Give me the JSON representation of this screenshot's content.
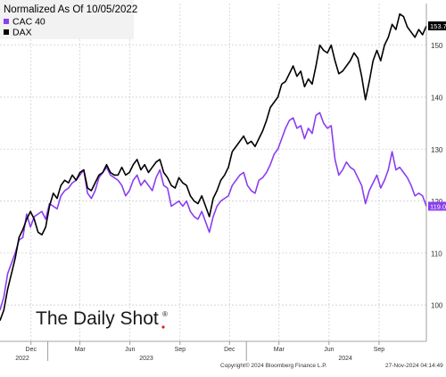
{
  "chart_data": {
    "type": "line",
    "title": "",
    "xlabel": "",
    "ylabel": "",
    "ylim": [
      93,
      158
    ],
    "yticks": [
      100,
      110,
      120,
      130,
      140,
      150
    ],
    "grid": true,
    "legend_placement": "top-left",
    "legend_header": "Normalized As Of 10/05/2022",
    "x_range": [
      "2022-10-05",
      "2024-11-27"
    ],
    "x_tick_labels": [
      {
        "date": "2022-12-01",
        "label": "Dec"
      },
      {
        "date": "2023-03-01",
        "label": "Mar"
      },
      {
        "date": "2023-06-01",
        "label": "Jun"
      },
      {
        "date": "2023-09-01",
        "label": "Sep"
      },
      {
        "date": "2023-12-01",
        "label": "Dec"
      },
      {
        "date": "2024-03-01",
        "label": "Mar"
      },
      {
        "date": "2024-06-01",
        "label": "Jun"
      },
      {
        "date": "2024-09-01",
        "label": "Sep"
      }
    ],
    "year_labels": [
      {
        "date": "2022-11-15",
        "label": "2022"
      },
      {
        "date": "2023-07-01",
        "label": "2023"
      },
      {
        "date": "2024-07-01",
        "label": "2024"
      }
    ],
    "year_dividers": [
      "2023-01-01",
      "2024-01-01"
    ],
    "series": [
      {
        "name": "CAC 40",
        "color": "#8a3ef0",
        "last_value_label": "119.0",
        "points": [
          [
            "2022-10-05",
            99.0
          ],
          [
            "2022-10-12",
            101.5
          ],
          [
            "2022-10-19",
            106.0
          ],
          [
            "2022-10-26",
            108.0
          ],
          [
            "2022-11-02",
            110.0
          ],
          [
            "2022-11-09",
            112.5
          ],
          [
            "2022-11-16",
            113.0
          ],
          [
            "2022-11-23",
            117.5
          ],
          [
            "2022-11-30",
            115.0
          ],
          [
            "2022-12-07",
            117.0
          ],
          [
            "2022-12-14",
            117.5
          ],
          [
            "2022-12-21",
            118.0
          ],
          [
            "2022-12-28",
            116.5
          ],
          [
            "2023-01-04",
            119.5
          ],
          [
            "2023-01-11",
            119.0
          ],
          [
            "2023-01-18",
            118.5
          ],
          [
            "2023-01-25",
            121.0
          ],
          [
            "2023-02-01",
            122.0
          ],
          [
            "2023-02-08",
            122.5
          ],
          [
            "2023-02-15",
            123.5
          ],
          [
            "2023-02-22",
            124.0
          ],
          [
            "2023-03-01",
            125.0
          ],
          [
            "2023-03-08",
            126.0
          ],
          [
            "2023-03-15",
            121.5
          ],
          [
            "2023-03-22",
            120.5
          ],
          [
            "2023-03-29",
            122.0
          ],
          [
            "2023-04-05",
            124.5
          ],
          [
            "2023-04-12",
            125.5
          ],
          [
            "2023-04-19",
            126.5
          ],
          [
            "2023-04-26",
            125.0
          ],
          [
            "2023-05-03",
            124.5
          ],
          [
            "2023-05-10",
            124.0
          ],
          [
            "2023-05-17",
            123.0
          ],
          [
            "2023-05-24",
            121.0
          ],
          [
            "2023-05-31",
            122.0
          ],
          [
            "2023-06-07",
            124.0
          ],
          [
            "2023-06-14",
            125.0
          ],
          [
            "2023-06-21",
            123.0
          ],
          [
            "2023-06-28",
            124.0
          ],
          [
            "2023-07-05",
            123.0
          ],
          [
            "2023-07-12",
            122.0
          ],
          [
            "2023-07-19",
            124.5
          ],
          [
            "2023-07-26",
            126.0
          ],
          [
            "2023-08-02",
            123.0
          ],
          [
            "2023-08-09",
            122.5
          ],
          [
            "2023-08-16",
            119.0
          ],
          [
            "2023-08-23",
            119.5
          ],
          [
            "2023-08-30",
            120.0
          ],
          [
            "2023-09-06",
            119.0
          ],
          [
            "2023-09-13",
            120.0
          ],
          [
            "2023-09-20",
            118.0
          ],
          [
            "2023-09-27",
            117.0
          ],
          [
            "2023-10-04",
            116.5
          ],
          [
            "2023-10-11",
            118.0
          ],
          [
            "2023-10-18",
            116.0
          ],
          [
            "2023-10-25",
            114.0
          ],
          [
            "2023-11-01",
            117.0
          ],
          [
            "2023-11-08",
            119.0
          ],
          [
            "2023-11-15",
            120.0
          ],
          [
            "2023-11-22",
            120.5
          ],
          [
            "2023-11-29",
            121.0
          ],
          [
            "2023-12-06",
            123.0
          ],
          [
            "2023-12-13",
            124.0
          ],
          [
            "2023-12-20",
            125.0
          ],
          [
            "2023-12-27",
            125.5
          ],
          [
            "2024-01-03",
            123.0
          ],
          [
            "2024-01-10",
            122.0
          ],
          [
            "2024-01-17",
            121.5
          ],
          [
            "2024-01-24",
            124.0
          ],
          [
            "2024-01-31",
            124.5
          ],
          [
            "2024-02-07",
            125.5
          ],
          [
            "2024-02-14",
            127.0
          ],
          [
            "2024-02-21",
            129.0
          ],
          [
            "2024-02-28",
            130.0
          ],
          [
            "2024-03-06",
            132.0
          ],
          [
            "2024-03-13",
            134.0
          ],
          [
            "2024-03-20",
            135.5
          ],
          [
            "2024-03-27",
            136.0
          ],
          [
            "2024-04-03",
            134.0
          ],
          [
            "2024-04-10",
            134.5
          ],
          [
            "2024-04-17",
            132.0
          ],
          [
            "2024-04-24",
            134.0
          ],
          [
            "2024-05-01",
            133.0
          ],
          [
            "2024-05-08",
            136.5
          ],
          [
            "2024-05-15",
            137.0
          ],
          [
            "2024-05-22",
            135.0
          ],
          [
            "2024-05-29",
            134.0
          ],
          [
            "2024-06-05",
            134.5
          ],
          [
            "2024-06-12",
            128.0
          ],
          [
            "2024-06-19",
            125.0
          ],
          [
            "2024-06-26",
            126.0
          ],
          [
            "2024-07-03",
            127.5
          ],
          [
            "2024-07-10",
            126.5
          ],
          [
            "2024-07-17",
            126.0
          ],
          [
            "2024-07-24",
            124.5
          ],
          [
            "2024-07-31",
            123.0
          ],
          [
            "2024-08-07",
            119.5
          ],
          [
            "2024-08-14",
            122.0
          ],
          [
            "2024-08-21",
            123.5
          ],
          [
            "2024-08-28",
            125.0
          ],
          [
            "2024-09-04",
            122.5
          ],
          [
            "2024-09-11",
            124.0
          ],
          [
            "2024-09-18",
            126.0
          ],
          [
            "2024-09-25",
            129.5
          ],
          [
            "2024-10-02",
            126.0
          ],
          [
            "2024-10-09",
            126.5
          ],
          [
            "2024-10-16",
            125.5
          ],
          [
            "2024-10-23",
            124.5
          ],
          [
            "2024-10-30",
            123.0
          ],
          [
            "2024-11-06",
            121.0
          ],
          [
            "2024-11-13",
            121.5
          ],
          [
            "2024-11-20",
            121.0
          ],
          [
            "2024-11-27",
            119.0
          ]
        ]
      },
      {
        "name": "DAX",
        "color": "#000000",
        "last_value_label": "153.7",
        "points": [
          [
            "2022-10-05",
            97.0
          ],
          [
            "2022-10-12",
            99.0
          ],
          [
            "2022-10-19",
            103.0
          ],
          [
            "2022-10-26",
            106.0
          ],
          [
            "2022-11-02",
            109.0
          ],
          [
            "2022-11-09",
            113.0
          ],
          [
            "2022-11-16",
            114.5
          ],
          [
            "2022-11-23",
            116.5
          ],
          [
            "2022-11-30",
            118.0
          ],
          [
            "2022-12-07",
            116.5
          ],
          [
            "2022-12-14",
            114.0
          ],
          [
            "2022-12-21",
            113.5
          ],
          [
            "2022-12-28",
            115.0
          ],
          [
            "2023-01-04",
            119.0
          ],
          [
            "2023-01-11",
            121.5
          ],
          [
            "2023-01-18",
            120.5
          ],
          [
            "2023-01-25",
            123.0
          ],
          [
            "2023-02-01",
            124.0
          ],
          [
            "2023-02-08",
            123.5
          ],
          [
            "2023-02-15",
            125.0
          ],
          [
            "2023-02-22",
            124.0
          ],
          [
            "2023-03-01",
            125.5
          ],
          [
            "2023-03-08",
            126.0
          ],
          [
            "2023-03-15",
            122.5
          ],
          [
            "2023-03-22",
            122.0
          ],
          [
            "2023-03-29",
            123.5
          ],
          [
            "2023-04-05",
            125.0
          ],
          [
            "2023-04-12",
            125.5
          ],
          [
            "2023-04-19",
            127.0
          ],
          [
            "2023-04-26",
            125.5
          ],
          [
            "2023-05-03",
            125.0
          ],
          [
            "2023-05-10",
            125.0
          ],
          [
            "2023-05-17",
            126.5
          ],
          [
            "2023-05-24",
            125.0
          ],
          [
            "2023-05-31",
            125.5
          ],
          [
            "2023-06-07",
            127.0
          ],
          [
            "2023-06-14",
            128.0
          ],
          [
            "2023-06-21",
            126.0
          ],
          [
            "2023-06-28",
            127.0
          ],
          [
            "2023-07-05",
            125.5
          ],
          [
            "2023-07-12",
            126.5
          ],
          [
            "2023-07-19",
            127.5
          ],
          [
            "2023-07-26",
            128.0
          ],
          [
            "2023-08-02",
            125.5
          ],
          [
            "2023-08-09",
            124.5
          ],
          [
            "2023-08-16",
            123.0
          ],
          [
            "2023-08-23",
            122.5
          ],
          [
            "2023-08-30",
            124.5
          ],
          [
            "2023-09-06",
            123.5
          ],
          [
            "2023-09-13",
            123.0
          ],
          [
            "2023-09-20",
            121.0
          ],
          [
            "2023-09-27",
            120.0
          ],
          [
            "2023-10-04",
            119.5
          ],
          [
            "2023-10-11",
            121.0
          ],
          [
            "2023-10-18",
            119.0
          ],
          [
            "2023-10-25",
            117.0
          ],
          [
            "2023-11-01",
            120.5
          ],
          [
            "2023-11-08",
            122.0
          ],
          [
            "2023-11-15",
            124.0
          ],
          [
            "2023-11-22",
            125.0
          ],
          [
            "2023-11-29",
            126.5
          ],
          [
            "2023-12-06",
            129.5
          ],
          [
            "2023-12-13",
            130.5
          ],
          [
            "2023-12-20",
            131.5
          ],
          [
            "2023-12-27",
            132.5
          ],
          [
            "2024-01-03",
            131.0
          ],
          [
            "2024-01-10",
            131.5
          ],
          [
            "2024-01-17",
            130.5
          ],
          [
            "2024-01-24",
            132.0
          ],
          [
            "2024-01-31",
            133.5
          ],
          [
            "2024-02-07",
            135.5
          ],
          [
            "2024-02-14",
            138.0
          ],
          [
            "2024-02-21",
            139.0
          ],
          [
            "2024-02-28",
            140.0
          ],
          [
            "2024-03-06",
            142.5
          ],
          [
            "2024-03-13",
            143.0
          ],
          [
            "2024-03-20",
            144.5
          ],
          [
            "2024-03-27",
            146.0
          ],
          [
            "2024-04-03",
            144.0
          ],
          [
            "2024-04-10",
            145.0
          ],
          [
            "2024-04-17",
            142.0
          ],
          [
            "2024-04-24",
            143.5
          ],
          [
            "2024-05-01",
            142.5
          ],
          [
            "2024-05-08",
            146.0
          ],
          [
            "2024-05-15",
            150.0
          ],
          [
            "2024-05-22",
            149.0
          ],
          [
            "2024-05-29",
            148.5
          ],
          [
            "2024-06-05",
            150.0
          ],
          [
            "2024-06-12",
            147.0
          ],
          [
            "2024-06-19",
            144.5
          ],
          [
            "2024-06-26",
            145.0
          ],
          [
            "2024-07-03",
            146.0
          ],
          [
            "2024-07-10",
            147.0
          ],
          [
            "2024-07-17",
            148.5
          ],
          [
            "2024-07-24",
            147.5
          ],
          [
            "2024-07-31",
            144.0
          ],
          [
            "2024-08-07",
            139.5
          ],
          [
            "2024-08-14",
            143.0
          ],
          [
            "2024-08-21",
            147.0
          ],
          [
            "2024-08-28",
            149.0
          ],
          [
            "2024-09-04",
            147.0
          ],
          [
            "2024-09-11",
            150.0
          ],
          [
            "2024-09-18",
            151.5
          ],
          [
            "2024-09-25",
            154.0
          ],
          [
            "2024-10-02",
            153.0
          ],
          [
            "2024-10-09",
            156.0
          ],
          [
            "2024-10-16",
            155.5
          ],
          [
            "2024-10-23",
            153.5
          ],
          [
            "2024-10-30",
            152.5
          ],
          [
            "2024-11-06",
            151.5
          ],
          [
            "2024-11-13",
            153.0
          ],
          [
            "2024-11-20",
            152.0
          ],
          [
            "2024-11-27",
            153.7
          ]
        ]
      }
    ],
    "annotations": {
      "watermark": "The Daily Shot",
      "copyright": "Copyright© 2024 Bloomberg Finance L.P.",
      "timestamp": "27-Nov-2024 04:14:49"
    }
  }
}
